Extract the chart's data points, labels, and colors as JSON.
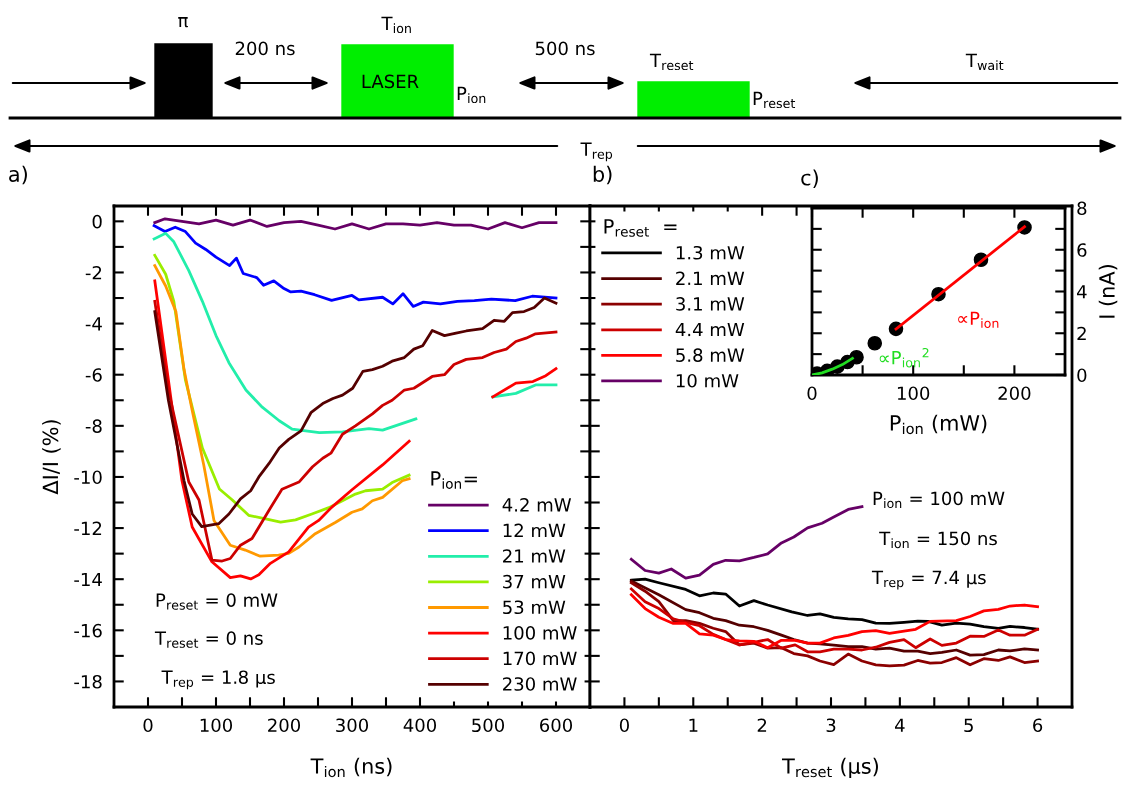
{
  "chart_data": [
    {
      "type": "other",
      "annotations": [
        "π",
        "200 ns",
        "T$_{ion}$",
        "LASER",
        "P$_{ion}$",
        "500 ns",
        "T$_{reset}$",
        "P$_{reset}$",
        "T$_{wait}$",
        "T$_{rep}$"
      ]
    },
    {
      "type": "line",
      "title": "a)",
      "xlabel": "T$_{ion}$ (ns)",
      "ylabel": "ΔI/I (%)",
      "legend_title": "P$_{ion}$=",
      "legend": "bottom right",
      "xlim": [
        -50,
        650
      ],
      "ylim": [
        -19,
        0.6
      ],
      "xticks": [
        0,
        {
          "value": 50,
          "label": null
        },
        100,
        {
          "value": 150,
          "label": null
        },
        200,
        {
          "value": 250,
          "label": null
        },
        300,
        {
          "value": 350,
          "label": null
        },
        400,
        {
          "value": 450,
          "label": null
        },
        500,
        {
          "value": 550,
          "label": null
        },
        600
      ],
      "yticks": [
        0,
        {
          "value": -1,
          "label": null
        },
        -2,
        {
          "value": -3,
          "label": null
        },
        -4,
        {
          "value": -5,
          "label": null
        },
        -6,
        {
          "value": -7,
          "label": null
        },
        -8,
        {
          "value": -9,
          "label": null
        },
        -10,
        {
          "value": -11,
          "label": null
        },
        -12,
        {
          "value": -13,
          "label": null
        },
        -14,
        {
          "value": -15,
          "label": null
        },
        -16,
        {
          "value": -17,
          "label": null
        },
        -18
      ],
      "annotations": [
        "P$_{reset}$ = 0 mW",
        "T$_{reset}$ = 0 ns",
        "T$_{rep}$ = 1.8 µs"
      ],
      "series": [
        {
          "name": "4.2 mW",
          "color": "#660066",
          "x": [
            10,
            25,
            50,
            75,
            100,
            125,
            150,
            175,
            200,
            225,
            250,
            275,
            300,
            325,
            350,
            375,
            400,
            425,
            450,
            475,
            500,
            525,
            550,
            575,
            600
          ],
          "values": [
            -0.05,
            0.1,
            0,
            -0.1,
            0.05,
            -0.15,
            0.05,
            -0.2,
            -0.05,
            0,
            -0.15,
            -0.3,
            -0.1,
            -0.3,
            -0.1,
            -0.1,
            -0.15,
            -0.05,
            -0.15,
            -0.15,
            -0.3,
            -0.05,
            -0.25,
            -0.05,
            -0.05
          ]
        },
        {
          "name": "12 mW",
          "color": "#0000ff",
          "x": [
            9,
            25,
            40,
            55,
            70,
            85,
            100,
            120,
            130,
            140,
            160,
            170,
            185,
            200,
            210,
            225,
            245,
            270,
            300,
            310,
            345,
            360,
            375,
            390,
            405,
            430,
            455,
            480,
            505,
            540,
            565,
            600
          ],
          "values": [
            -0.17,
            -0.4,
            -0.23,
            -0.4,
            -0.85,
            -1.1,
            -1.4,
            -1.73,
            -1.44,
            -2.04,
            -2.2,
            -2.5,
            -2.33,
            -2.63,
            -2.76,
            -2.73,
            -2.87,
            -3.09,
            -2.9,
            -3.07,
            -2.97,
            -3.23,
            -2.83,
            -3.33,
            -3.16,
            -3.23,
            -3.13,
            -3.1,
            -3.04,
            -3.1,
            -2.93,
            -3.0
          ]
        },
        {
          "name": "21 mW",
          "color": "#22eeaa",
          "x": [
            9,
            26,
            38,
            60,
            80,
            100,
            119,
            144,
            168,
            193,
            212,
            252,
            286,
            325,
            345,
            394,
            450,
            507,
            541,
            570,
            600
          ],
          "values": [
            -0.69,
            -0.47,
            -0.8,
            -1.93,
            -3.13,
            -4.47,
            -5.53,
            -6.6,
            -7.27,
            -7.8,
            -8.13,
            -8.27,
            -8.24,
            -8.11,
            -8.17,
            -7.73,
            null,
            -6.87,
            -6.73,
            -6.4,
            -6.4
          ]
        },
        {
          "name": "37 mW",
          "color": "#99ee00",
          "x": [
            10,
            26,
            38,
            55,
            80,
            105,
            124,
            148,
            173,
            195,
            217,
            241,
            266,
            286,
            305,
            320,
            345,
            359,
            384
          ],
          "values": [
            -1.33,
            -2.07,
            -3.13,
            -6.2,
            -8.87,
            -10.47,
            -10.9,
            -11.5,
            -11.64,
            -11.77,
            -11.68,
            -11.45,
            -11.2,
            -10.93,
            -10.67,
            -10.54,
            -10.48,
            -10.22,
            -9.93
          ]
        },
        {
          "name": "53 mW",
          "color": "#ff9900",
          "x": [
            10,
            26,
            41,
            53,
            65,
            82,
            97,
            121,
            143,
            165,
            192,
            207,
            222,
            246,
            276,
            300,
            315,
            330,
            345,
            374,
            384
          ],
          "values": [
            -1.73,
            -2.53,
            -3.53,
            -5.8,
            -7.4,
            -9.53,
            -11.7,
            -12.67,
            -12.86,
            -13.1,
            -13.06,
            -12.99,
            -12.74,
            -12.22,
            -11.77,
            -11.38,
            -11.25,
            -10.93,
            -10.8,
            -10.15,
            -10.07
          ]
        },
        {
          "name": "100 mW",
          "color": "#ff0000",
          "x": [
            10,
            30,
            50,
            65,
            94,
            121,
            136,
            151,
            163,
            180,
            207,
            236,
            251,
            270,
            300,
            345,
            384,
            450,
            507,
            541,
            566,
            585,
            600
          ],
          "values": [
            -2.33,
            -6.2,
            -10.15,
            -11.96,
            -13.32,
            -13.94,
            -13.87,
            -13.99,
            -13.83,
            -13.38,
            -12.93,
            -11.96,
            -11.7,
            -11.19,
            -10.5,
            -9.53,
            -8.6,
            null,
            -6.87,
            -6.33,
            -6.27,
            -6.04,
            -5.76
          ]
        },
        {
          "name": "170 mW",
          "color": "#cc0000",
          "x": [
            10,
            30,
            60,
            75,
            94,
            109,
            121,
            136,
            153,
            178,
            197,
            222,
            242,
            257,
            269,
            286,
            305,
            330,
            345,
            359,
            377,
            391,
            418,
            436,
            450,
            468,
            492,
            509,
            527,
            541,
            556,
            570,
            600
          ],
          "values": [
            -3.13,
            -6.6,
            -10.2,
            -10.9,
            -13.25,
            -13.29,
            -13.19,
            -12.67,
            -12.41,
            -11.3,
            -10.48,
            -10.2,
            -9.6,
            -9.27,
            -9.07,
            -8.33,
            -8.0,
            -7.53,
            -7.2,
            -7.0,
            -6.6,
            -6.53,
            -6.07,
            -6.0,
            -5.6,
            -5.4,
            -5.33,
            -5.13,
            -5.0,
            -4.7,
            -4.57,
            -4.4,
            -4.33
          ]
        },
        {
          "name": "230 mW",
          "color": "#550000",
          "x": [
            10,
            30,
            53,
            65,
            79,
            104,
            119,
            136,
            151,
            163,
            178,
            193,
            207,
            225,
            240,
            257,
            272,
            286,
            301,
            316,
            330,
            345,
            359,
            377,
            391,
            404,
            418,
            436,
            453,
            468,
            492,
            509,
            524,
            536,
            553,
            568,
            583,
            600
          ],
          "values": [
            -3.53,
            -7.0,
            -10.15,
            -11.45,
            -11.94,
            -11.83,
            -11.45,
            -10.86,
            -10.54,
            -10.0,
            -9.47,
            -8.87,
            -8.53,
            -8.2,
            -7.47,
            -7.13,
            -6.93,
            -6.8,
            -6.53,
            -5.87,
            -5.8,
            -5.67,
            -5.47,
            -5.33,
            -5.0,
            -4.87,
            -4.27,
            -4.47,
            -4.37,
            -4.29,
            -4.2,
            -3.87,
            -3.91,
            -3.57,
            -3.53,
            -3.37,
            -3.0,
            -3.2
          ]
        }
      ]
    },
    {
      "type": "line",
      "title": "b)",
      "xlabel": "T$_{reset}$ (µs)",
      "legend_title": "P$_{reset}$  =",
      "legend": "top left",
      "tick_labels": "x",
      "xlim": [
        -0.5,
        6.5
      ],
      "ylim": [
        -19,
        0.6
      ],
      "xticks": [
        0,
        {
          "value": 0.5,
          "label": null
        },
        1,
        {
          "value": 1.5,
          "label": null
        },
        2,
        {
          "value": 2.5,
          "label": null
        },
        3,
        {
          "value": 3.5,
          "label": null
        },
        4,
        {
          "value": 4.5,
          "label": null
        },
        5,
        {
          "value": 5.5,
          "label": null
        },
        6
      ],
      "yticks": [
        0,
        {
          "value": -1,
          "label": null
        },
        -2,
        {
          "value": -3,
          "label": null
        },
        -4,
        {
          "value": -5,
          "label": null
        },
        -6,
        {
          "value": -7,
          "label": null
        },
        -8,
        {
          "value": -9,
          "label": null
        },
        -10,
        {
          "value": -11,
          "label": null
        },
        -12,
        {
          "value": -13,
          "label": null
        },
        -14,
        {
          "value": -15,
          "label": null
        },
        -16,
        {
          "value": -17,
          "label": null
        },
        -18
      ],
      "annotations": [
        "P$_{ion}$ = 100 mW",
        "T$_{ion}$ = 150 ns",
        "T$_{rep}$ = 7.4 µs"
      ],
      "series": [
        {
          "name": "1.3 mW",
          "color": "#000000",
          "x": [
            0.1,
            0.3,
            0.5,
            0.89,
            1.09,
            1.29,
            1.47,
            1.67,
            1.88,
            2.08,
            2.43,
            2.66,
            2.84,
            3.04,
            3.25,
            3.45,
            3.65,
            3.85,
            4.06,
            4.26,
            4.41,
            4.61,
            4.82,
            5.02,
            5.22,
            5.43,
            5.6,
            5.81,
            6
          ],
          "values": [
            -14.04,
            -14.0,
            -14.14,
            -14.4,
            -14.65,
            -14.54,
            -14.58,
            -15.05,
            -14.84,
            -15.01,
            -15.28,
            -15.42,
            -15.36,
            -15.49,
            -15.55,
            -15.58,
            -15.72,
            -15.73,
            -15.69,
            -15.64,
            -15.65,
            -15.8,
            -15.72,
            -15.76,
            -15.86,
            -15.92,
            -15.85,
            -15.89,
            -15.96
          ]
        },
        {
          "name": "2.1 mW",
          "color": "#550000",
          "x": [
            0.1,
            0.5,
            0.89,
            1.09,
            1.29,
            1.47,
            1.67,
            1.88,
            2.08,
            2.28,
            2.46,
            2.66,
            2.84,
            3.04,
            3.25,
            3.45,
            3.65,
            3.85,
            4.06,
            4.26,
            4.44,
            4.61,
            4.82,
            5.02,
            5.22,
            5.43,
            5.6,
            5.81,
            6
          ],
          "values": [
            -14.07,
            -14.61,
            -15.19,
            -15.31,
            -15.53,
            -15.62,
            -15.8,
            -15.86,
            -16.0,
            -16.19,
            -16.36,
            -16.5,
            -16.53,
            -16.58,
            -16.64,
            -16.64,
            -16.74,
            -16.7,
            -16.81,
            -16.81,
            -16.91,
            -16.86,
            -16.77,
            -16.97,
            -16.95,
            -16.77,
            -16.8,
            -16.73,
            -16.77
          ]
        },
        {
          "name": "3.1 mW",
          "color": "#8b0000",
          "x": [
            0.1,
            0.3,
            0.5,
            0.71,
            0.89,
            1.09,
            1.29,
            1.47,
            1.67,
            1.88,
            2.08,
            2.28,
            2.46,
            2.66,
            2.84,
            3.04,
            3.25,
            3.45,
            3.65,
            3.85,
            4.06,
            4.26,
            4.44,
            4.61,
            4.82,
            5.02,
            5.22,
            5.43,
            5.6,
            5.81,
            6
          ],
          "values": [
            -14.14,
            -14.47,
            -14.88,
            -15.62,
            -15.62,
            -15.73,
            -15.92,
            -16.05,
            -16.57,
            -16.5,
            -16.7,
            -16.68,
            -16.91,
            -17.0,
            -17.2,
            -17.34,
            -16.93,
            -17.2,
            -17.35,
            -17.39,
            -17.36,
            -17.18,
            -17.28,
            -17.26,
            -17.07,
            -17.35,
            -17.11,
            -17.18,
            -17.04,
            -17.26,
            -17.2
          ]
        },
        {
          "name": "4.4 mW",
          "color": "#cc0000",
          "x": [
            0.1,
            0.3,
            0.5,
            0.71,
            0.89,
            1.09,
            1.29,
            1.47,
            1.67,
            1.88,
            2.08,
            2.28,
            2.48,
            2.66,
            2.84,
            3.04,
            3.25,
            3.45,
            3.65,
            3.85,
            4.06,
            4.23,
            4.44,
            4.61,
            4.82,
            5.02,
            5.22,
            5.43,
            5.6,
            5.81,
            6
          ],
          "values": [
            -14.38,
            -14.88,
            -15.15,
            -15.55,
            -15.69,
            -15.82,
            -16.16,
            -16.36,
            -16.57,
            -16.47,
            -16.36,
            -16.7,
            -16.57,
            -16.84,
            -16.84,
            -16.74,
            -16.74,
            -16.77,
            -16.66,
            -16.47,
            -16.36,
            -16.68,
            -16.34,
            -16.59,
            -16.5,
            -16.23,
            -16.24,
            -15.99,
            -16.19,
            -16.19,
            -15.96
          ]
        },
        {
          "name": "5.8 mW",
          "color": "#ff0000",
          "x": [
            0.1,
            0.3,
            0.5,
            0.71,
            0.89,
            1.09,
            1.29,
            1.47,
            1.67,
            1.88,
            2.08,
            2.28,
            2.48,
            2.66,
            2.84,
            3.04,
            3.25,
            3.45,
            3.65,
            3.85,
            4.06,
            4.23,
            4.44,
            4.82,
            5.02,
            5.22,
            5.43,
            5.6,
            5.81,
            6
          ],
          "values": [
            -14.61,
            -15.15,
            -15.49,
            -15.73,
            -15.73,
            -16.14,
            -16.19,
            -16.36,
            -16.41,
            -16.43,
            -16.68,
            -16.39,
            -16.39,
            -16.5,
            -16.5,
            -16.3,
            -16.2,
            -16.05,
            -16.01,
            -16.12,
            -16.03,
            -15.96,
            -15.65,
            -15.62,
            -15.46,
            -15.24,
            -15.18,
            -15.05,
            -15.01,
            -15.08
          ]
        },
        {
          "name": "10 mW",
          "color": "#660066",
          "x": [
            0.1,
            0.3,
            0.5,
            0.68,
            0.89,
            1.09,
            1.29,
            1.47,
            1.67,
            1.88,
            2.08,
            2.28,
            2.46,
            2.66,
            2.87,
            3.04,
            3.25,
            3.45
          ],
          "values": [
            -13.22,
            -13.66,
            -13.76,
            -13.6,
            -13.96,
            -13.84,
            -13.42,
            -13.26,
            -13.28,
            -13.15,
            -13.01,
            -12.58,
            -12.35,
            -11.99,
            -11.81,
            -11.57,
            -11.27,
            -11.16
          ]
        }
      ]
    },
    {
      "type": "scatter",
      "title": "c)",
      "xlabel": "P$_{ion}$ (mW)",
      "ylabel": "I (nA)",
      "xlim": [
        0,
        250
      ],
      "ylim": [
        0,
        8
      ],
      "xticks": [
        0,
        {
          "value": 50,
          "label": null
        },
        100,
        {
          "value": 150,
          "label": null
        },
        200
      ],
      "yticks": [
        0,
        {
          "value": 1,
          "label": null
        },
        2,
        {
          "value": 3,
          "label": null
        },
        4,
        {
          "value": 5,
          "label": null
        },
        6,
        {
          "value": 7,
          "label": null
        },
        8
      ],
      "annotations": [
        "∝P$_{ion}$",
        "∝P$_{ion}$$^{2}$"
      ],
      "series": [
        {
          "color": "#000000",
          "marker": "circle",
          "x": [
            5,
            15,
            25,
            35,
            44,
            62,
            83,
            125,
            167,
            210
          ],
          "values": [
            0.07,
            0.2,
            0.4,
            0.62,
            0.85,
            1.52,
            2.21,
            3.87,
            5.52,
            7.07
          ]
        },
        {
          "type": "line",
          "color": "#ff0000",
          "x": [
            83,
            210
          ],
          "values": [
            2.2,
            7.1
          ]
        },
        {
          "type": "line",
          "color": "#22dd22",
          "x": [
            0,
            10,
            20,
            30,
            40
          ],
          "values": [
            0,
            0.1,
            0.28,
            0.5,
            0.8
          ]
        }
      ]
    }
  ]
}
